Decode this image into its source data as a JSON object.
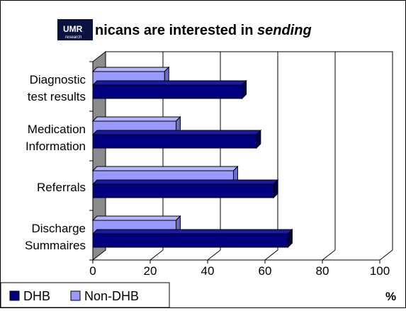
{
  "logo": {
    "text": "UMR",
    "subtext": "research"
  },
  "chart_data": {
    "type": "bar",
    "orientation": "horizontal",
    "style": "3d",
    "title": "nicans are interested in sending",
    "title_plain": "nicans are interested in ",
    "title_italic": "sending",
    "categories": [
      [
        "Diagnostic",
        "test results"
      ],
      [
        "Medication",
        "Information"
      ],
      [
        "Referrals"
      ],
      [
        "Discharge",
        "Summaires"
      ]
    ],
    "series": [
      {
        "name": "DHB",
        "values": [
          52,
          57,
          63,
          68
        ]
      },
      {
        "name": "Non-DHB",
        "values": [
          25,
          29,
          49,
          29
        ]
      }
    ],
    "xlim": [
      0,
      100
    ],
    "xticks": [
      0,
      20,
      40,
      60,
      80,
      100
    ],
    "xunit": "%",
    "grid": true,
    "legend": "bottom-left",
    "colors": {
      "DHB": "#000080",
      "DHB_top": "#1a1aa6",
      "DHB_side": "#000050",
      "Non-DHB": "#9999ff",
      "Non-DHB_top": "#b3b3ff",
      "Non-DHB_side": "#6b6bcc",
      "wall": "#8c8c8c"
    }
  }
}
